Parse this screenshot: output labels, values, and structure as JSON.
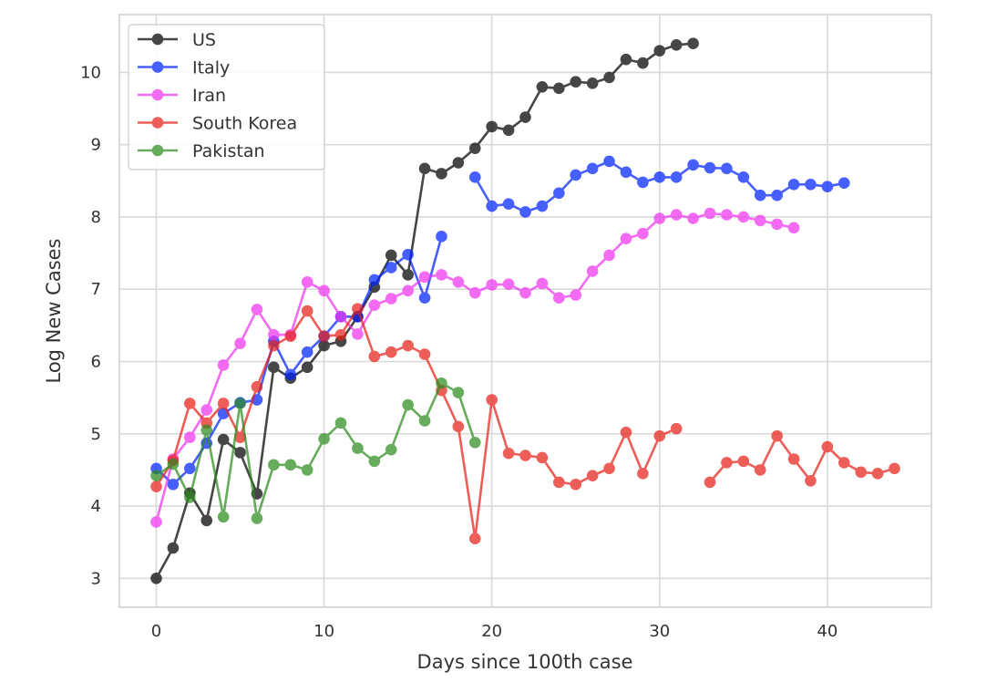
{
  "chart_data": {
    "type": "line",
    "xlabel": "Days since 100th case",
    "ylabel": "Log New Cases",
    "xlim": [
      -2.2,
      46.2
    ],
    "ylim": [
      2.6,
      10.8
    ],
    "xticks": [
      0,
      10,
      20,
      30,
      40
    ],
    "yticks": [
      3,
      4,
      5,
      6,
      7,
      8,
      9,
      10
    ],
    "grid": true,
    "legend_position": "top-left",
    "series": [
      {
        "name": "US",
        "color": "#000000",
        "x": [
          0,
          1,
          2,
          3,
          4,
          5,
          6,
          7,
          8,
          9,
          10,
          11,
          12,
          13,
          14,
          15,
          16,
          17,
          18,
          19,
          20,
          21,
          22,
          23,
          24,
          25,
          26,
          27,
          28,
          29,
          30,
          31,
          32
        ],
        "y": [
          3.0,
          3.42,
          4.18,
          3.8,
          4.92,
          4.74,
          4.17,
          5.92,
          5.77,
          5.92,
          6.22,
          6.28,
          6.62,
          7.03,
          7.47,
          7.2,
          8.67,
          8.6,
          8.75,
          8.95,
          9.25,
          9.2,
          9.38,
          9.8,
          9.78,
          9.87,
          9.85,
          9.93,
          10.18,
          10.13,
          10.3,
          10.38,
          10.4
        ]
      },
      {
        "name": "Italy",
        "color": "#0022ff",
        "x": [
          0,
          1,
          2,
          3,
          4,
          5,
          6,
          7,
          8,
          9,
          10,
          11,
          12,
          13,
          14,
          15,
          16,
          17,
          null,
          19,
          20,
          21,
          22,
          23,
          24,
          25,
          26,
          27,
          28,
          29,
          30,
          31,
          32,
          33,
          34,
          35,
          36,
          37,
          38,
          39,
          40,
          41
        ],
        "y": [
          4.52,
          4.3,
          4.52,
          4.87,
          5.28,
          5.43,
          5.47,
          6.28,
          5.82,
          6.13,
          6.35,
          6.62,
          6.62,
          7.13,
          7.3,
          7.48,
          6.88,
          7.73,
          null,
          8.55,
          8.15,
          8.18,
          8.07,
          8.15,
          8.33,
          8.58,
          8.67,
          8.77,
          8.62,
          8.48,
          8.55,
          8.55,
          8.72,
          8.68,
          8.67,
          8.55,
          8.3,
          8.3,
          8.45,
          8.45,
          8.42,
          8.47
        ]
      },
      {
        "name": "Iran",
        "color": "#ee33ee",
        "x": [
          0,
          1,
          2,
          3,
          4,
          5,
          6,
          7,
          8,
          9,
          10,
          11,
          12,
          13,
          14,
          15,
          16,
          17,
          18,
          19,
          20,
          21,
          22,
          23,
          24,
          25,
          26,
          27,
          28,
          29,
          30,
          31,
          32,
          33,
          34,
          35,
          36,
          37,
          38
        ],
        "y": [
          3.78,
          4.65,
          4.95,
          5.33,
          5.95,
          6.25,
          6.72,
          6.37,
          6.37,
          7.1,
          6.98,
          6.62,
          6.38,
          6.78,
          6.87,
          6.98,
          7.17,
          7.2,
          7.1,
          6.95,
          7.06,
          7.07,
          6.95,
          7.08,
          6.88,
          6.92,
          7.25,
          7.47,
          7.7,
          7.77,
          7.98,
          8.03,
          7.98,
          8.05,
          8.03,
          8.0,
          7.95,
          7.9,
          7.85
        ]
      },
      {
        "name": "South Korea",
        "color": "#e8211a",
        "x": [
          0,
          1,
          2,
          3,
          4,
          5,
          6,
          7,
          8,
          9,
          10,
          11,
          12,
          13,
          14,
          15,
          16,
          17,
          18,
          19,
          20,
          21,
          22,
          23,
          24,
          25,
          26,
          27,
          28,
          29,
          30,
          31,
          null,
          33,
          34,
          35,
          36,
          37,
          38,
          39,
          40,
          41,
          42,
          43,
          44
        ],
        "y": [
          4.27,
          4.63,
          5.42,
          5.15,
          5.42,
          4.95,
          5.65,
          6.22,
          6.35,
          6.7,
          6.35,
          6.37,
          6.73,
          6.07,
          6.13,
          6.22,
          6.1,
          5.6,
          5.1,
          3.55,
          5.47,
          4.73,
          4.7,
          4.67,
          4.33,
          4.3,
          4.42,
          4.52,
          5.02,
          4.45,
          4.97,
          5.07,
          null,
          4.33,
          4.6,
          4.62,
          4.5,
          4.97,
          4.65,
          4.35,
          4.82,
          4.6,
          4.47,
          4.45,
          4.52
        ]
      },
      {
        "name": "Pakistan",
        "color": "#2e8b1f",
        "x": [
          0,
          1,
          2,
          3,
          4,
          5,
          6,
          7,
          8,
          9,
          10,
          11,
          12,
          13,
          14,
          15,
          16,
          17,
          18,
          19
        ],
        "y": [
          4.42,
          4.58,
          4.12,
          5.05,
          3.85,
          5.42,
          3.83,
          4.57,
          4.57,
          4.5,
          4.93,
          5.15,
          4.8,
          4.62,
          4.78,
          5.4,
          5.18,
          5.7,
          5.57,
          4.88
        ]
      }
    ]
  }
}
